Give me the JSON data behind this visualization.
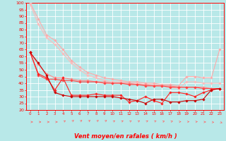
{
  "xlabel": "Vent moyen/en rafales ( km/h )",
  "background_color": "#b8e8e8",
  "grid_color": "#ffffff",
  "x": [
    0,
    1,
    2,
    3,
    4,
    5,
    6,
    7,
    8,
    9,
    10,
    11,
    12,
    13,
    14,
    15,
    16,
    17,
    18,
    19,
    20,
    21,
    22,
    23
  ],
  "series": [
    {
      "color": "#ffaaaa",
      "linewidth": 0.8,
      "marker": "D",
      "markersize": 1.8,
      "values": [
        100,
        88,
        76,
        72,
        65,
        57,
        52,
        48,
        46,
        44,
        43,
        42,
        41,
        41,
        40,
        40,
        39,
        39,
        38,
        45,
        45,
        44,
        44,
        65
      ]
    },
    {
      "color": "#ffbbbb",
      "linewidth": 0.8,
      "marker": "D",
      "markersize": 1.8,
      "values": [
        99,
        84,
        74,
        69,
        62,
        55,
        50,
        46,
        44,
        42,
        41,
        41,
        40,
        40,
        39,
        39,
        38,
        37,
        36,
        41,
        41,
        40,
        40,
        40
      ]
    },
    {
      "color": "#ff8888",
      "linewidth": 0.8,
      "marker": "D",
      "markersize": 1.8,
      "values": [
        63,
        54,
        47,
        44,
        44,
        43,
        42,
        42,
        41,
        41,
        40,
        40,
        40,
        39,
        39,
        38,
        38,
        38,
        37,
        37,
        37,
        37,
        36,
        36
      ]
    },
    {
      "color": "#ff4444",
      "linewidth": 0.8,
      "marker": "D",
      "markersize": 1.8,
      "values": [
        63,
        46,
        43,
        43,
        42,
        42,
        41,
        41,
        41,
        40,
        40,
        40,
        39,
        39,
        38,
        38,
        38,
        37,
        37,
        37,
        37,
        36,
        36,
        36
      ]
    },
    {
      "color": "#ff2222",
      "linewidth": 0.8,
      "marker": "D",
      "markersize": 1.8,
      "values": [
        63,
        47,
        44,
        35,
        44,
        31,
        31,
        31,
        32,
        31,
        31,
        31,
        26,
        27,
        30,
        27,
        25,
        33,
        33,
        32,
        30,
        33,
        35,
        36
      ]
    },
    {
      "color": "#cc0000",
      "linewidth": 0.8,
      "marker": "D",
      "markersize": 1.8,
      "values": [
        63,
        55,
        46,
        33,
        31,
        30,
        30,
        30,
        30,
        30,
        30,
        29,
        28,
        27,
        25,
        28,
        28,
        26,
        26,
        27,
        27,
        28,
        35,
        36
      ]
    }
  ],
  "ylim": [
    20,
    100
  ],
  "yticks": [
    20,
    25,
    30,
    35,
    40,
    45,
    50,
    55,
    60,
    65,
    70,
    75,
    80,
    85,
    90,
    95,
    100
  ],
  "xlim": [
    -0.5,
    23.5
  ],
  "xlabel_color": "#ff0000",
  "tick_color": "#ff0000",
  "axis_color": "#ff0000",
  "xlabel_fontsize": 6.0,
  "ytick_fontsize": 4.5,
  "xtick_fontsize": 4.0
}
